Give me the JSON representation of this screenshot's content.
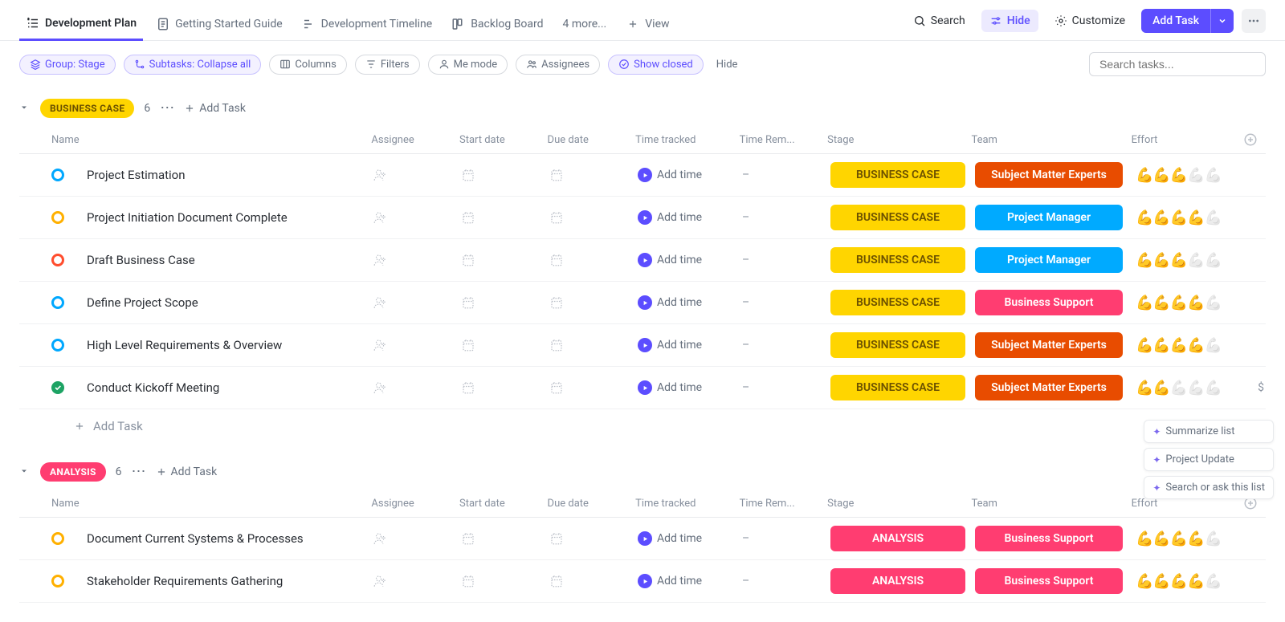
{
  "colors": {
    "accent": "#5c4dff",
    "badge_business_case": "#ffd500",
    "badge_business_case_text": "#6b5000",
    "badge_analysis": "#ff3d71",
    "badge_sme": "#e84c00",
    "badge_pm": "#00aaff",
    "badge_bs": "#ff3d71"
  },
  "tabs": [
    {
      "label": "Development Plan",
      "active": true,
      "icon": "list"
    },
    {
      "label": "Getting Started Guide",
      "active": false,
      "icon": "doc"
    },
    {
      "label": "Development Timeline",
      "active": false,
      "icon": "gantt"
    },
    {
      "label": "Backlog Board",
      "active": false,
      "icon": "board"
    },
    {
      "label": "4 more...",
      "active": false,
      "icon": "none"
    },
    {
      "label": "View",
      "active": false,
      "icon": "plus"
    }
  ],
  "top_actions": {
    "search": "Search",
    "hide": "Hide",
    "customize": "Customize",
    "add_task": "Add Task"
  },
  "filter_bar": {
    "group": "Group: Stage",
    "subtasks": "Subtasks: Collapse all",
    "columns": "Columns",
    "filters": "Filters",
    "me_mode": "Me mode",
    "assignees": "Assignees",
    "show_closed": "Show closed",
    "hide": "Hide",
    "search_placeholder": "Search tasks..."
  },
  "columns": {
    "name": "Name",
    "assignee": "Assignee",
    "start": "Start date",
    "due": "Due date",
    "tracked": "Time tracked",
    "remain": "Time Rem...",
    "stage": "Stage",
    "team": "Team",
    "effort": "Effort"
  },
  "strings": {
    "add_time": "Add time",
    "add_task": "Add Task",
    "dash": "–"
  },
  "groups": [
    {
      "label": "BUSINESS CASE",
      "pill_bg": "#ffd500",
      "pill_color": "#6b5000",
      "count": 6,
      "tasks": [
        {
          "status_color": "#00a8ff",
          "status_type": "ring",
          "name": "Project Estimation",
          "stage": "BUSINESS CASE",
          "stage_bg": "#ffd500",
          "stage_color": "#6b5000",
          "team": "Subject Matter Experts",
          "team_bg": "#e84c00",
          "effort_lit": 3,
          "effort_total": 5
        },
        {
          "status_color": "#ffb000",
          "status_type": "ring",
          "name": "Project Initiation Document Complete",
          "stage": "BUSINESS CASE",
          "stage_bg": "#ffd500",
          "stage_color": "#6b5000",
          "team": "Project Manager",
          "team_bg": "#00aaff",
          "effort_lit": 4,
          "effort_total": 5
        },
        {
          "status_color": "#ff4d2e",
          "status_type": "ring",
          "name": "Draft Business Case",
          "stage": "BUSINESS CASE",
          "stage_bg": "#ffd500",
          "stage_color": "#6b5000",
          "team": "Project Manager",
          "team_bg": "#00aaff",
          "effort_lit": 3,
          "effort_total": 5
        },
        {
          "status_color": "#00a8ff",
          "status_type": "ring",
          "name": "Define Project Scope",
          "stage": "BUSINESS CASE",
          "stage_bg": "#ffd500",
          "stage_color": "#6b5000",
          "team": "Business Support",
          "team_bg": "#ff3d71",
          "effort_lit": 4,
          "effort_total": 5
        },
        {
          "status_color": "#00a8ff",
          "status_type": "ring",
          "name": "High Level Requirements & Overview",
          "stage": "BUSINESS CASE",
          "stage_bg": "#ffd500",
          "stage_color": "#6b5000",
          "team": "Subject Matter Experts",
          "team_bg": "#e84c00",
          "effort_lit": 4,
          "effort_total": 5
        },
        {
          "status_color": "#1da364",
          "status_type": "check",
          "name": "Conduct Kickoff Meeting",
          "stage": "BUSINESS CASE",
          "stage_bg": "#ffd500",
          "stage_color": "#6b5000",
          "team": "Subject Matter Experts",
          "team_bg": "#e84c00",
          "effort_lit": 2,
          "effort_total": 5,
          "money": true
        }
      ]
    },
    {
      "label": "ANALYSIS",
      "pill_bg": "#ff3d71",
      "pill_color": "#ffffff",
      "count": 6,
      "tasks": [
        {
          "status_color": "#ffb000",
          "status_type": "ring",
          "name": "Document Current Systems & Processes",
          "stage": "ANALYSIS",
          "stage_bg": "#ff3d71",
          "stage_color": "#ffffff",
          "team": "Business Support",
          "team_bg": "#ff3d71",
          "effort_lit": 4,
          "effort_total": 5
        },
        {
          "status_color": "#ffb000",
          "status_type": "ring",
          "name": "Stakeholder Requirements Gathering",
          "stage": "ANALYSIS",
          "stage_bg": "#ff3d71",
          "stage_color": "#ffffff",
          "team": "Business Support",
          "team_bg": "#ff3d71",
          "effort_lit": 4,
          "effort_total": 5
        }
      ]
    }
  ],
  "floating": {
    "summarize": "Summarize list",
    "project_update": "Project Update",
    "search_ask": "Search or ask this list"
  }
}
